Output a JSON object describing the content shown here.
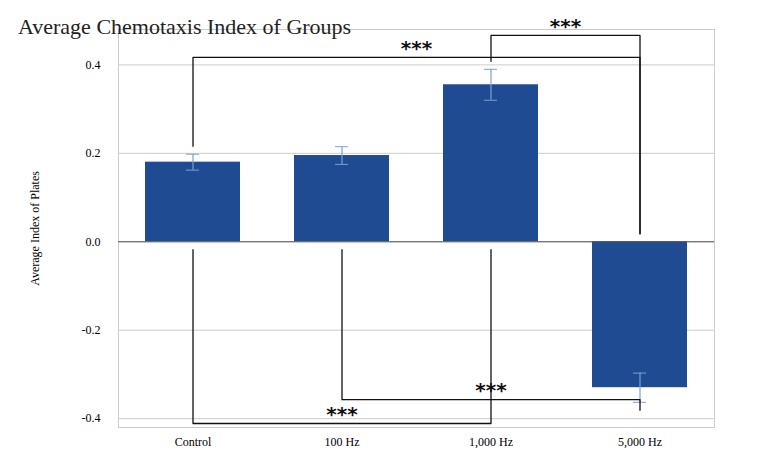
{
  "chart_data": {
    "type": "bar",
    "title": "Average Chemotaxis Index of Groups",
    "ylabel": "Average Index of Plates",
    "categories": [
      "Control",
      "100 Hz",
      "1,000 Hz",
      "5,000 Hz"
    ],
    "values": [
      0.18,
      0.195,
      0.355,
      -0.33
    ],
    "errors": [
      0.018,
      0.02,
      0.035,
      0.033
    ],
    "color": "#1f4b93",
    "ylim": [
      -0.42,
      0.48
    ],
    "yticks": [
      -0.4,
      -0.2,
      {
        "value": 0,
        "label": "0.0"
      },
      0.2,
      0.4
    ],
    "grid": true,
    "annotations": [
      {
        "text": "***",
        "from": "Control",
        "to": "5,000 Hz"
      },
      {
        "text": "***",
        "from": "1,000 Hz",
        "to": "5,000 Hz"
      },
      {
        "text": "***",
        "from": "Control",
        "to": "1,000 Hz"
      },
      {
        "text": "***",
        "from": "100 Hz",
        "to": "5,000 Hz"
      }
    ]
  }
}
